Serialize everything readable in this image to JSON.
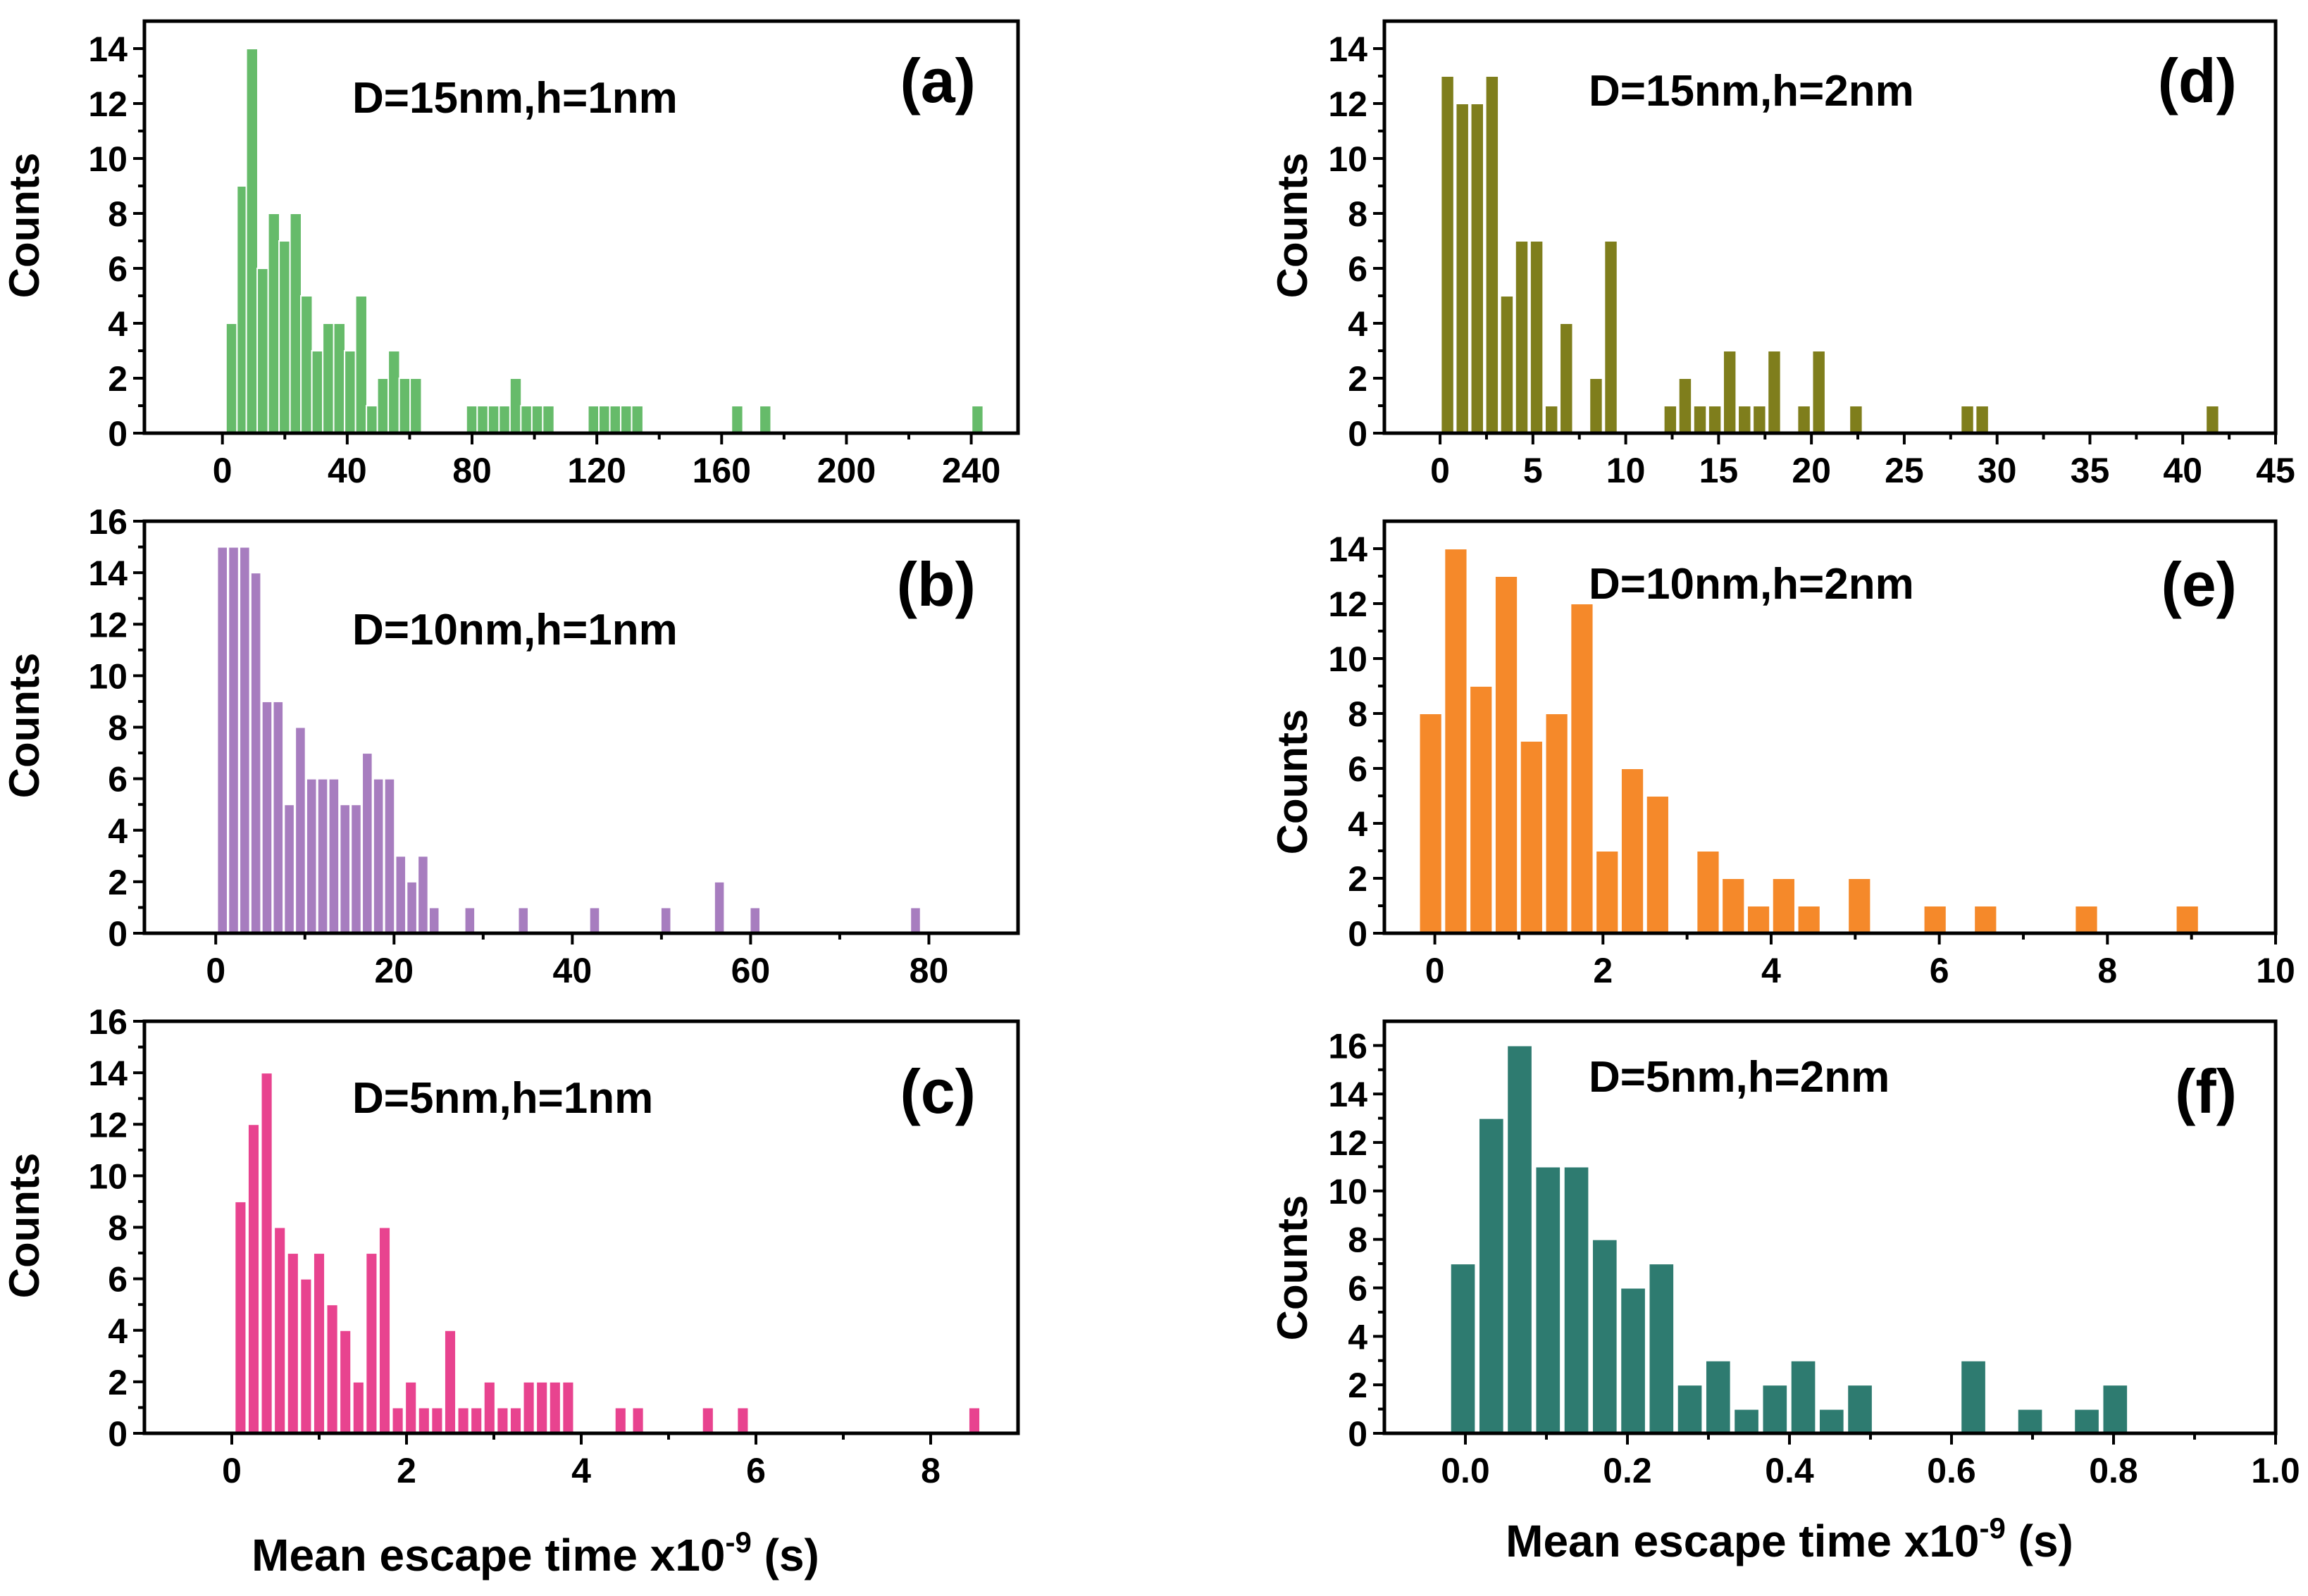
{
  "figure": {
    "xlabel_main": "Mean escape time x10",
    "xlabel_exp": "-9",
    "xlabel_unit": " (s)"
  },
  "chart_data": [
    {
      "id": "a",
      "type": "bar",
      "color": "#66bb6a",
      "panel_label": "(a)",
      "annotation": "D=15nm,h=1nm",
      "ylabel": "Counts",
      "xlim": [
        -25,
        255
      ],
      "ylim": [
        0,
        15
      ],
      "xticks": [
        0,
        40,
        80,
        120,
        160,
        200,
        240
      ],
      "xticklabels": [
        "0",
        "40",
        "80",
        "120",
        "160",
        "200",
        "240"
      ],
      "yticks": [
        0,
        2,
        4,
        6,
        8,
        10,
        12,
        14
      ],
      "yticklabels": [
        "0",
        "2",
        "4",
        "6",
        "8",
        "10",
        "12",
        "14"
      ],
      "bin_width": 3.7,
      "x": [
        3,
        6.5,
        9.5,
        13,
        16.5,
        20,
        23.5,
        27,
        30.5,
        34,
        37.5,
        41,
        44.5,
        48,
        51.5,
        55,
        58.5,
        62,
        80,
        83.5,
        87,
        90.5,
        94,
        97.5,
        101,
        104.5,
        119,
        122.5,
        126,
        129.5,
        133,
        165,
        174,
        242
      ],
      "values": [
        4,
        9,
        14,
        6,
        8,
        7,
        8,
        5,
        3,
        4,
        4,
        3,
        5,
        1,
        2,
        3,
        2,
        2,
        1,
        1,
        1,
        1,
        2,
        1,
        1,
        1,
        1,
        1,
        1,
        1,
        1,
        1,
        1,
        1
      ]
    },
    {
      "id": "b",
      "type": "bar",
      "color": "#a77dbf",
      "panel_label": "(b)",
      "annotation": "D=10nm,h=1nm",
      "ylabel": "Counts",
      "xlim": [
        -8,
        90
      ],
      "ylim": [
        0,
        16
      ],
      "xticks": [
        0,
        20,
        40,
        60,
        80
      ],
      "xticklabels": [
        "0",
        "20",
        "40",
        "60",
        "80"
      ],
      "yticks": [
        0,
        2,
        4,
        6,
        8,
        10,
        12,
        14,
        16
      ],
      "yticklabels": [
        "0",
        "2",
        "4",
        "6",
        "8",
        "10",
        "12",
        "14",
        "16"
      ],
      "bin_width": 1.15,
      "x": [
        0.75,
        2,
        3.25,
        4.5,
        5.75,
        7,
        8.25,
        9.5,
        10.75,
        12,
        13.25,
        14.5,
        15.75,
        17,
        18.25,
        19.5,
        20.75,
        22,
        23.25,
        24.5,
        28.5,
        34.5,
        42.5,
        50.5,
        56.5,
        60.5,
        78.5
      ],
      "values": [
        15,
        15,
        15,
        14,
        9,
        9,
        5,
        8,
        6,
        6,
        6,
        5,
        5,
        7,
        6,
        6,
        3,
        2,
        3,
        1,
        1,
        1,
        1,
        1,
        2,
        1,
        1
      ]
    },
    {
      "id": "c",
      "type": "bar",
      "color": "#e8438f",
      "panel_label": "(c)",
      "annotation": "D=5nm,h=1nm",
      "ylabel": "Counts",
      "xlim": [
        -1,
        9
      ],
      "ylim": [
        0,
        16
      ],
      "xticks": [
        0,
        2,
        4,
        6,
        8
      ],
      "xticklabels": [
        "0",
        "2",
        "4",
        "6",
        "8"
      ],
      "yticks": [
        0,
        2,
        4,
        6,
        8,
        10,
        12,
        14,
        16
      ],
      "yticklabels": [
        "0",
        "2",
        "4",
        "6",
        "8",
        "10",
        "12",
        "14",
        "16"
      ],
      "bin_width": 0.13,
      "x": [
        0.1,
        0.25,
        0.4,
        0.55,
        0.7,
        0.85,
        1.0,
        1.15,
        1.3,
        1.45,
        1.6,
        1.75,
        1.9,
        2.05,
        2.2,
        2.35,
        2.5,
        2.65,
        2.8,
        2.95,
        3.1,
        3.25,
        3.4,
        3.55,
        3.7,
        3.85,
        4.45,
        4.65,
        5.45,
        5.85,
        8.5
      ],
      "values": [
        9,
        12,
        14,
        8,
        7,
        6,
        7,
        5,
        4,
        2,
        7,
        8,
        1,
        2,
        1,
        1,
        4,
        1,
        1,
        2,
        1,
        1,
        2,
        2,
        2,
        2,
        1,
        1,
        1,
        1,
        1
      ]
    },
    {
      "id": "d",
      "type": "bar",
      "color": "#7f7e1c",
      "panel_label": "(d)",
      "annotation": "D=15nm,h=2nm",
      "ylabel": "Counts",
      "xlim": [
        -3,
        45
      ],
      "ylim": [
        0,
        15
      ],
      "xticks": [
        0,
        5,
        10,
        15,
        20,
        25,
        30,
        35,
        40,
        45
      ],
      "xticklabels": [
        "0",
        "5",
        "10",
        "15",
        "20",
        "25",
        "30",
        "35",
        "40",
        "45"
      ],
      "yticks": [
        0,
        2,
        4,
        6,
        8,
        10,
        12,
        14
      ],
      "yticklabels": [
        "0",
        "2",
        "4",
        "6",
        "8",
        "10",
        "12",
        "14"
      ],
      "bin_width": 0.7,
      "x": [
        0.4,
        1.2,
        2.0,
        2.8,
        3.6,
        4.4,
        5.2,
        6.0,
        6.8,
        7.6,
        8.4,
        9.2,
        10.0,
        10.8,
        11.6,
        12.4,
        13.2,
        14.0,
        14.8,
        15.6,
        16.4,
        17.2,
        18.0,
        18.8,
        19.6,
        20.4,
        22.4,
        28.4,
        29.2,
        41.6
      ],
      "values": [
        13,
        12,
        12,
        13,
        5,
        7,
        7,
        1,
        4,
        0,
        2,
        7,
        0,
        0,
        0,
        1,
        2,
        1,
        1,
        3,
        1,
        1,
        3,
        0,
        1,
        3,
        1,
        1,
        1,
        1
      ]
    },
    {
      "id": "e",
      "type": "bar",
      "color": "#f5892a",
      "panel_label": "(e)",
      "annotation": "D=10nm,h=2nm",
      "ylabel": "Counts",
      "xlim": [
        -0.6,
        10
      ],
      "ylim": [
        0,
        15
      ],
      "xticks": [
        0,
        2,
        4,
        6,
        8,
        10
      ],
      "xticklabels": [
        "0",
        "2",
        "4",
        "6",
        "8",
        "10"
      ],
      "yticks": [
        0,
        2,
        4,
        6,
        8,
        10,
        12,
        14
      ],
      "yticklabels": [
        "0",
        "2",
        "4",
        "6",
        "8",
        "10",
        "12",
        "14"
      ],
      "bin_width": 0.27,
      "x": [
        -0.05,
        0.25,
        0.55,
        0.85,
        1.15,
        1.45,
        1.75,
        2.05,
        2.35,
        2.65,
        3.25,
        3.55,
        3.85,
        4.15,
        4.45,
        5.05,
        5.95,
        6.55,
        7.75,
        8.95
      ],
      "values": [
        8,
        14,
        9,
        13,
        7,
        8,
        12,
        3,
        6,
        5,
        3,
        2,
        1,
        2,
        1,
        2,
        1,
        1,
        1,
        1
      ]
    },
    {
      "id": "f",
      "type": "bar",
      "color": "#2e7b70",
      "panel_label": "(f)",
      "annotation": "D=5nm,h=2nm",
      "ylabel": "Counts",
      "xlim": [
        -0.1,
        1.0
      ],
      "ylim": [
        0,
        17
      ],
      "xticks": [
        0.0,
        0.2,
        0.4,
        0.6,
        0.8,
        1.0
      ],
      "xticklabels": [
        "0.0",
        "0.2",
        "0.4",
        "0.6",
        "0.8",
        "1.0"
      ],
      "yticks": [
        0,
        2,
        4,
        6,
        8,
        10,
        12,
        14,
        16
      ],
      "yticklabels": [
        "0",
        "2",
        "4",
        "6",
        "8",
        "10",
        "12",
        "14",
        "16"
      ],
      "bin_width": 0.031,
      "x": [
        -0.003,
        0.032,
        0.067,
        0.102,
        0.137,
        0.172,
        0.207,
        0.242,
        0.277,
        0.312,
        0.347,
        0.382,
        0.417,
        0.452,
        0.487,
        0.522,
        0.557,
        0.592,
        0.627,
        0.662,
        0.697,
        0.732,
        0.767,
        0.802,
        0.837,
        0.872
      ],
      "values": [
        7,
        13,
        16,
        11,
        11,
        8,
        6,
        7,
        2,
        3,
        1,
        2,
        3,
        1,
        2,
        0,
        0,
        0,
        3,
        0,
        1,
        0,
        1,
        2,
        0,
        0
      ]
    }
  ]
}
